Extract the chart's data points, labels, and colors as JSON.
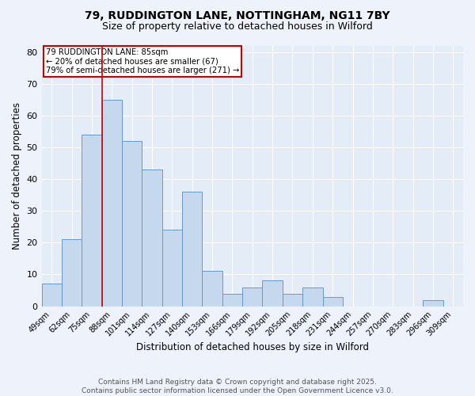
{
  "title_line1": "79, RUDDINGTON LANE, NOTTINGHAM, NG11 7BY",
  "title_line2": "Size of property relative to detached houses in Wilford",
  "xlabel": "Distribution of detached houses by size in Wilford",
  "ylabel": "Number of detached properties",
  "categories": [
    "49sqm",
    "62sqm",
    "75sqm",
    "88sqm",
    "101sqm",
    "114sqm",
    "127sqm",
    "140sqm",
    "153sqm",
    "166sqm",
    "179sqm",
    "192sqm",
    "205sqm",
    "218sqm",
    "231sqm",
    "244sqm",
    "257sqm",
    "270sqm",
    "283sqm",
    "296sqm",
    "309sqm"
  ],
  "values": [
    7,
    21,
    54,
    65,
    52,
    43,
    24,
    36,
    11,
    4,
    6,
    8,
    4,
    6,
    3,
    0,
    0,
    0,
    0,
    2,
    0
  ],
  "bar_color": "#c5d8ee",
  "bar_edgecolor": "#6699cc",
  "bar_linewidth": 0.7,
  "redline_index": 2.5,
  "redline_label": "79 RUDDINGTON LANE: 85sqm",
  "redline_note1": "← 20% of detached houses are smaller (67)",
  "redline_note2": "79% of semi-detached houses are larger (271) →",
  "annotation_box_edgecolor": "#cc0000",
  "ylim": [
    0,
    82
  ],
  "yticks": [
    0,
    10,
    20,
    30,
    40,
    50,
    60,
    70,
    80
  ],
  "footer_line1": "Contains HM Land Registry data © Crown copyright and database right 2025.",
  "footer_line2": "Contains public sector information licensed under the Open Government Licence v3.0.",
  "bg_color": "#eef2fa",
  "plot_bg_color": "#e4ecf7"
}
